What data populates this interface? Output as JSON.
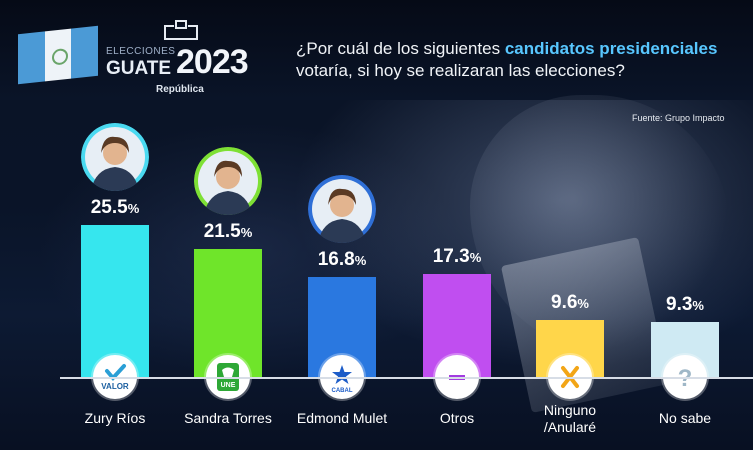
{
  "header": {
    "logo_line1": "ELECCIONES",
    "logo_line2": "GUATE",
    "logo_year": "2023",
    "logo_sub": "República",
    "question_part1": "¿Por cuál de los siguientes ",
    "question_highlight": "candidatos presidenciales",
    "question_part2": "votaría, si hoy se realizaran las elecciones?",
    "source": "Fuente: Grupo Impacto"
  },
  "chart_data": {
    "type": "bar",
    "title": "¿Por cuál de los siguientes candidatos presidenciales votaría, si hoy se realizaran las elecciones?",
    "categories": [
      "Zury Ríos",
      "Sandra Torres",
      "Edmond Mulet",
      "Otros",
      "Ninguno /Anularé",
      "No sabe"
    ],
    "values": [
      25.5,
      21.5,
      16.8,
      17.3,
      9.6,
      9.3
    ],
    "value_labels": [
      "25.5",
      "21.5",
      "16.8",
      "17.3",
      "9.6",
      "9.3"
    ],
    "unit": "%",
    "bar_colors": [
      "#36e6ee",
      "#6fe52a",
      "#2a78e0",
      "#c04ef0",
      "#ffd64a",
      "#cfeaf3"
    ],
    "icons": [
      "valor-party-icon",
      "une-party-icon",
      "cabal-party-icon",
      "minus-icon",
      "x-icon",
      "question-icon"
    ],
    "icon_texts": [
      "VALOR",
      "UNE",
      "CABAL",
      "",
      "",
      ""
    ],
    "photo_rings": [
      "#4ad9f0",
      "#7ee035",
      "#2f6fd6"
    ],
    "grid": false,
    "legend": "none"
  }
}
